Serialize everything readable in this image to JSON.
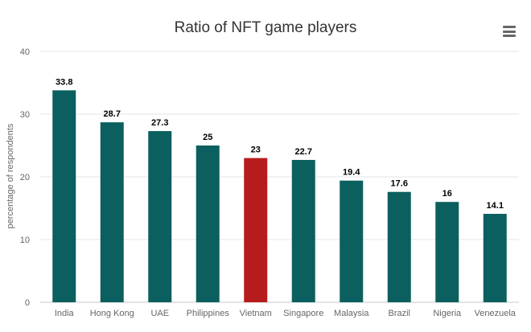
{
  "chart_data": {
    "type": "bar",
    "title": "Ratio of NFT game players",
    "xlabel": "",
    "ylabel": "percentage of respondents",
    "categories": [
      "India",
      "Hong Kong",
      "UAE",
      "Philippines",
      "Vietnam",
      "Singapore",
      "Malaysia",
      "Brazil",
      "Nigeria",
      "Venezuela"
    ],
    "values": [
      33.8,
      28.7,
      27.3,
      25,
      23,
      22.7,
      19.4,
      17.6,
      16,
      14.1
    ],
    "ylim": [
      0,
      40
    ],
    "yticks": [
      0,
      10,
      20,
      30,
      40
    ],
    "colors": {
      "default": "#0b5f5f",
      "highlight": "#b71c1c",
      "grid": "#e6e6e6"
    },
    "highlight_category": "Vietnam",
    "grid": true,
    "legend": "none"
  },
  "toolbar": {
    "menu_icon": "hamburger-menu-icon"
  }
}
